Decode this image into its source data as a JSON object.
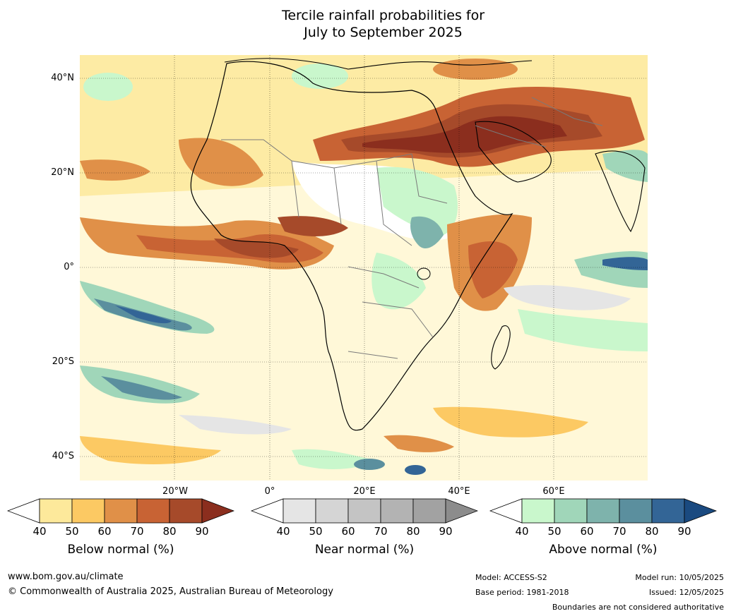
{
  "title": {
    "line1": "Tercile rainfall probabilities for",
    "line2": "July to September 2025"
  },
  "map": {
    "lat_labels": [
      "40°N",
      "20°N",
      "0°",
      "20°S",
      "40°S"
    ],
    "lon_labels": [
      "20°W",
      "0°",
      "20°E",
      "40°E",
      "60°E"
    ]
  },
  "colorbars": [
    {
      "name": "Below normal (%)",
      "ticks": [
        "40",
        "50",
        "60",
        "70",
        "80",
        "90"
      ],
      "colors": [
        "#ffffff",
        "#fde99b",
        "#fcc963",
        "#e09048",
        "#c86334",
        "#a64a2a",
        "#8b2e1e"
      ]
    },
    {
      "name": "Near normal (%)",
      "ticks": [
        "40",
        "50",
        "60",
        "70",
        "80",
        "90"
      ],
      "colors": [
        "#ffffff",
        "#e5e5e5",
        "#d5d5d5",
        "#c4c4c4",
        "#b3b3b3",
        "#a2a2a2",
        "#8c8c8c"
      ]
    },
    {
      "name": "Above normal (%)",
      "ticks": [
        "40",
        "50",
        "60",
        "70",
        "80",
        "90"
      ],
      "colors": [
        "#ffffff",
        "#c9f7cc",
        "#a0d6b9",
        "#7eb3ac",
        "#5b8f9e",
        "#336596",
        "#1a4a80"
      ]
    }
  ],
  "footer": {
    "url": "www.bom.gov.au/climate",
    "copyright": "© Commonwealth of Australia 2025, Australian Bureau of Meteorology",
    "model": "Model: ACCESS-S2",
    "base_period": "Base period: 1981-2018",
    "model_run": "Model run: 10/05/2025",
    "issued": "Issued: 12/05/2025",
    "disclaimer": "Boundaries are not considered authoritative"
  }
}
